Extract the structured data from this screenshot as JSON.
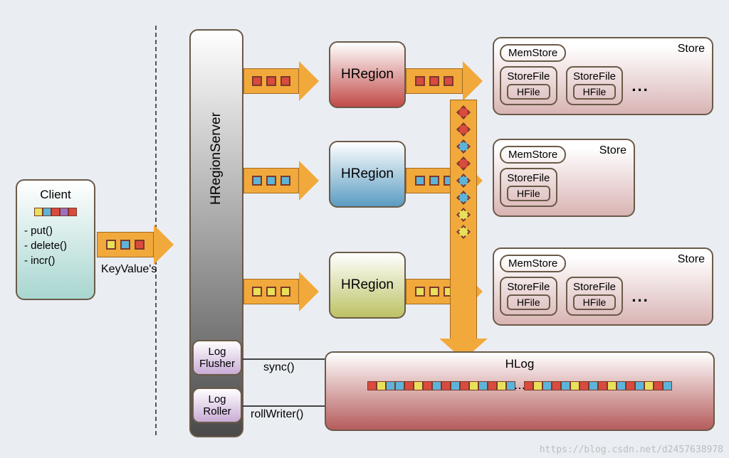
{
  "background": "#eaedf2",
  "client": {
    "title": "Client",
    "methods": [
      "- put()",
      "- delete()",
      "- incr()"
    ],
    "bar_colors": [
      "yellow",
      "blue",
      "red",
      "purple",
      "red"
    ]
  },
  "keyvalue_label": "KeyValue's",
  "hregionserver": {
    "title": "HRegionServer"
  },
  "log_flusher": {
    "line1": "Log",
    "line2": "Flusher",
    "fn": "sync()"
  },
  "log_roller": {
    "line1": "Log",
    "line2": "Roller",
    "fn": "rollWriter()"
  },
  "arrows": {
    "a0": {
      "colors": [
        "yellow",
        "blue",
        "red"
      ]
    },
    "a1": {
      "colors": [
        "red",
        "red",
        "red"
      ]
    },
    "a2": {
      "colors": [
        "blue",
        "blue",
        "blue"
      ]
    },
    "a3": {
      "colors": [
        "yellow",
        "yellow",
        "yellow"
      ]
    },
    "a1r": {
      "colors": [
        "red",
        "red",
        "red"
      ]
    },
    "a2r": {
      "colors": [
        "blue",
        "blue",
        "blue"
      ]
    },
    "a3r": {
      "colors": [
        "yellow",
        "yellow",
        "yellow"
      ]
    }
  },
  "varrow_colors": [
    "red",
    "red",
    "blue",
    "red",
    "blue",
    "blue",
    "yellow",
    "yellow"
  ],
  "hregions": [
    {
      "label": "HRegion",
      "gradient_to": "#c14b49"
    },
    {
      "label": "HRegion",
      "gradient_to": "#5a9cc2"
    },
    {
      "label": "HRegion",
      "gradient_to": "#bcc264"
    }
  ],
  "stores": [
    {
      "title": "Store",
      "memstore": "MemStore",
      "storefiles": [
        {
          "label": "StoreFile",
          "hfile": "HFile"
        },
        {
          "label": "StoreFile",
          "hfile": "HFile"
        }
      ],
      "ellipsis": "..."
    },
    {
      "title": "Store",
      "memstore": "MemStore",
      "storefiles": [
        {
          "label": "StoreFile",
          "hfile": "HFile"
        }
      ]
    },
    {
      "title": "Store",
      "memstore": "MemStore",
      "storefiles": [
        {
          "label": "StoreFile",
          "hfile": "HFile"
        },
        {
          "label": "StoreFile",
          "hfile": "HFile"
        }
      ],
      "ellipsis": "..."
    }
  ],
  "hlog": {
    "title": "HLog",
    "bar_colors_left": [
      "red",
      "yellow",
      "blue",
      "blue",
      "red",
      "yellow",
      "red",
      "blue",
      "red",
      "blue",
      "red",
      "yellow",
      "blue",
      "red",
      "yellow",
      "blue"
    ],
    "bar_colors_right": [
      "red",
      "yellow",
      "blue",
      "red",
      "blue",
      "yellow",
      "red",
      "blue",
      "red",
      "yellow",
      "blue",
      "red",
      "blue",
      "yellow",
      "red",
      "blue"
    ]
  },
  "watermark": "https://blog.csdn.net/d2457638978"
}
